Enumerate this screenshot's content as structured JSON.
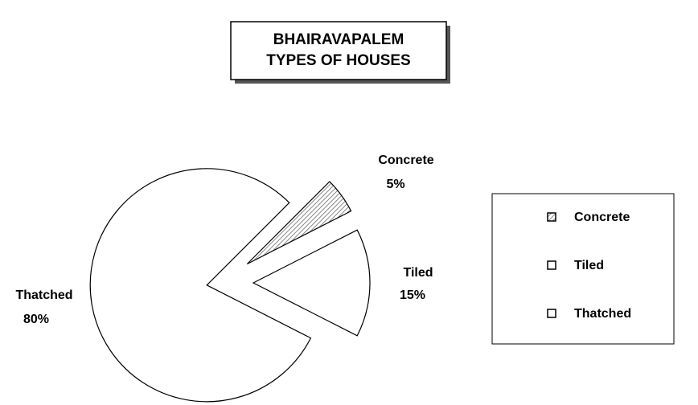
{
  "chart_data": {
    "type": "pie",
    "title": [
      "BHAIRAVAPALEM",
      "TYPES OF HOUSES"
    ],
    "categories": [
      "Concrete",
      "Tiled",
      "Thatched"
    ],
    "values": [
      5,
      15,
      80
    ],
    "value_labels": [
      "5%",
      "15%",
      "80%"
    ],
    "legend": "right"
  }
}
